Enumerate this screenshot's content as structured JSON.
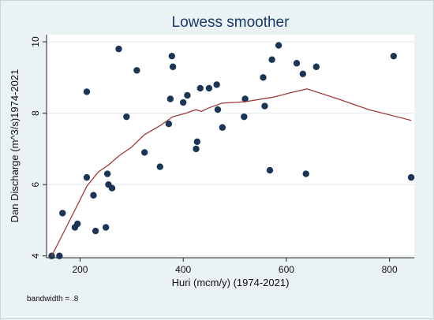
{
  "chart_data": {
    "type": "scatter",
    "title": "Lowess smoother",
    "xlabel": "Huri (mcm/y) (1974-2021)",
    "ylabel": "Dan Discharge (m^3/s)1974-2021",
    "note": "bandwidth = .8",
    "xlim": [
      135,
      848
    ],
    "ylim": [
      3.95,
      10.2
    ],
    "xticks": [
      200,
      400,
      600,
      800
    ],
    "yticks": [
      4,
      6,
      8,
      10
    ],
    "grid": true,
    "colors": {
      "points": "#1b3556",
      "line": "#a23a3a",
      "plot_bg": "#ffffff",
      "outer_bg": "#eaf2f3",
      "title": "#1a3a6b"
    },
    "points": [
      {
        "x": 145,
        "y": 4.0
      },
      {
        "x": 160,
        "y": 4.0
      },
      {
        "x": 166,
        "y": 5.2
      },
      {
        "x": 190,
        "y": 4.8
      },
      {
        "x": 195,
        "y": 4.9
      },
      {
        "x": 213,
        "y": 8.6
      },
      {
        "x": 213,
        "y": 6.2
      },
      {
        "x": 226,
        "y": 5.7
      },
      {
        "x": 230,
        "y": 4.7
      },
      {
        "x": 250,
        "y": 4.8
      },
      {
        "x": 253,
        "y": 6.3
      },
      {
        "x": 255,
        "y": 6.0
      },
      {
        "x": 262,
        "y": 5.9
      },
      {
        "x": 275,
        "y": 9.8
      },
      {
        "x": 290,
        "y": 7.9
      },
      {
        "x": 310,
        "y": 9.2
      },
      {
        "x": 325,
        "y": 6.9
      },
      {
        "x": 355,
        "y": 6.5
      },
      {
        "x": 372,
        "y": 7.7
      },
      {
        "x": 375,
        "y": 8.4
      },
      {
        "x": 378,
        "y": 9.6
      },
      {
        "x": 380,
        "y": 9.3
      },
      {
        "x": 400,
        "y": 8.3
      },
      {
        "x": 408,
        "y": 8.5
      },
      {
        "x": 425,
        "y": 7.0
      },
      {
        "x": 427,
        "y": 7.2
      },
      {
        "x": 433,
        "y": 8.7
      },
      {
        "x": 450,
        "y": 8.7
      },
      {
        "x": 465,
        "y": 8.8
      },
      {
        "x": 467,
        "y": 8.1
      },
      {
        "x": 476,
        "y": 7.6
      },
      {
        "x": 518,
        "y": 7.9
      },
      {
        "x": 520,
        "y": 8.4
      },
      {
        "x": 555,
        "y": 9.0
      },
      {
        "x": 558,
        "y": 8.2
      },
      {
        "x": 568,
        "y": 6.4
      },
      {
        "x": 572,
        "y": 9.5
      },
      {
        "x": 585,
        "y": 9.9
      },
      {
        "x": 620,
        "y": 9.4
      },
      {
        "x": 632,
        "y": 9.1
      },
      {
        "x": 638,
        "y": 6.3
      },
      {
        "x": 658,
        "y": 9.3
      },
      {
        "x": 808,
        "y": 9.6
      },
      {
        "x": 842,
        "y": 6.2
      }
    ],
    "lowess": [
      {
        "x": 145,
        "y": 4.0
      },
      {
        "x": 180,
        "y": 5.0
      },
      {
        "x": 213,
        "y": 5.95
      },
      {
        "x": 235,
        "y": 6.35
      },
      {
        "x": 255,
        "y": 6.55
      },
      {
        "x": 275,
        "y": 6.8
      },
      {
        "x": 300,
        "y": 7.05
      },
      {
        "x": 325,
        "y": 7.4
      },
      {
        "x": 355,
        "y": 7.65
      },
      {
        "x": 380,
        "y": 7.9
      },
      {
        "x": 405,
        "y": 8.0
      },
      {
        "x": 425,
        "y": 8.1
      },
      {
        "x": 435,
        "y": 8.05
      },
      {
        "x": 450,
        "y": 8.15
      },
      {
        "x": 475,
        "y": 8.28
      },
      {
        "x": 520,
        "y": 8.32
      },
      {
        "x": 575,
        "y": 8.45
      },
      {
        "x": 610,
        "y": 8.58
      },
      {
        "x": 640,
        "y": 8.68
      },
      {
        "x": 700,
        "y": 8.4
      },
      {
        "x": 760,
        "y": 8.1
      },
      {
        "x": 842,
        "y": 7.8
      }
    ]
  }
}
